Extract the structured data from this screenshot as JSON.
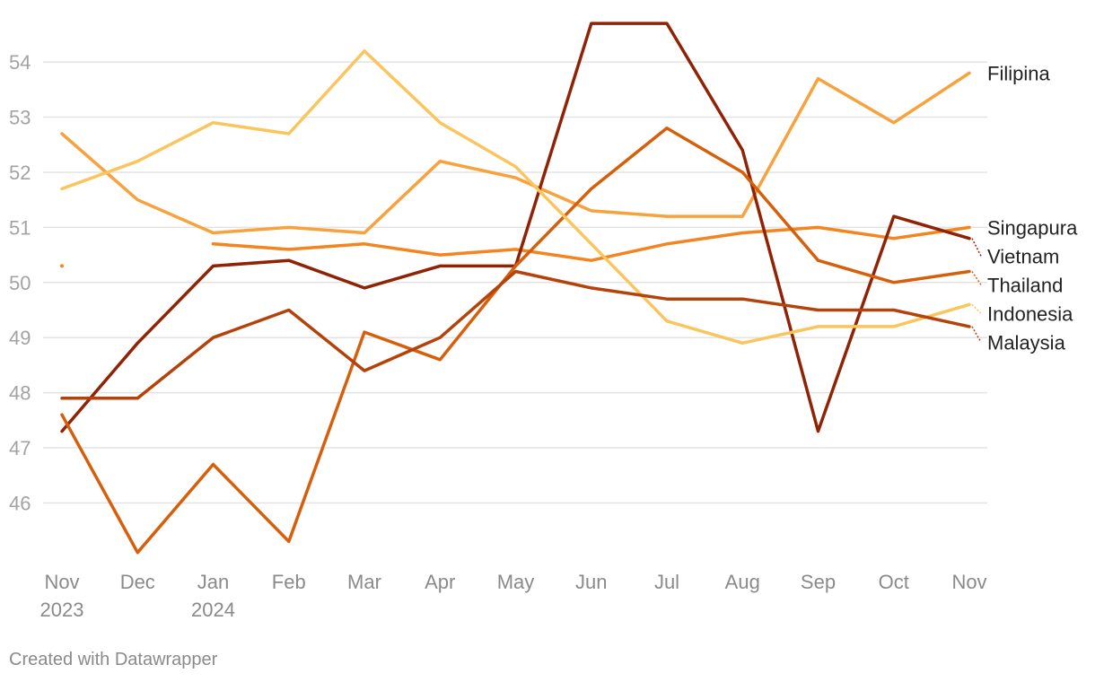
{
  "chart_data": {
    "type": "line",
    "x": [
      "Nov 2023",
      "Dec 2023",
      "Jan 2024",
      "Feb 2024",
      "Mar 2024",
      "Apr 2024",
      "May 2024",
      "Jun 2024",
      "Jul 2024",
      "Aug 2024",
      "Sep 2024",
      "Oct 2024",
      "Nov 2024"
    ],
    "x_tick_labels": [
      {
        "line1": "Nov",
        "line2": "2023"
      },
      {
        "line1": "Dec",
        "line2": ""
      },
      {
        "line1": "Jan",
        "line2": "2024"
      },
      {
        "line1": "Feb",
        "line2": ""
      },
      {
        "line1": "Mar",
        "line2": ""
      },
      {
        "line1": "Apr",
        "line2": ""
      },
      {
        "line1": "May",
        "line2": ""
      },
      {
        "line1": "Jun",
        "line2": ""
      },
      {
        "line1": "Jul",
        "line2": ""
      },
      {
        "line1": "Aug",
        "line2": ""
      },
      {
        "line1": "Sep",
        "line2": ""
      },
      {
        "line1": "Oct",
        "line2": ""
      },
      {
        "line1": "Nov",
        "line2": ""
      }
    ],
    "y_ticks": [
      46,
      47,
      48,
      49,
      50,
      51,
      52,
      53,
      54
    ],
    "ylim": [
      44.9,
      54.8
    ],
    "grid": true,
    "title": "",
    "xlabel": "",
    "ylabel": "",
    "series": [
      {
        "name": "Filipina",
        "color": "#f7a23c",
        "values": [
          52.7,
          51.5,
          50.9,
          51.0,
          50.9,
          52.2,
          51.9,
          51.3,
          51.2,
          51.2,
          53.7,
          52.9,
          53.8
        ]
      },
      {
        "name": "Singapura",
        "color": "#f4841f",
        "values": [
          50.3,
          null,
          50.7,
          50.6,
          50.7,
          50.5,
          50.6,
          50.4,
          50.7,
          50.9,
          51.0,
          50.8,
          51.0
        ]
      },
      {
        "name": "Vietnam",
        "color": "#8f2305",
        "values": [
          47.3,
          48.9,
          50.3,
          50.4,
          49.9,
          50.3,
          50.3,
          54.7,
          54.7,
          52.4,
          47.3,
          51.2,
          50.8
        ]
      },
      {
        "name": "Thailand",
        "color": "#d65f0c",
        "values": [
          47.6,
          45.1,
          46.7,
          45.3,
          49.1,
          48.6,
          50.3,
          51.7,
          52.8,
          52.0,
          50.4,
          50.0,
          50.2
        ]
      },
      {
        "name": "Indonesia",
        "color": "#fbc55e",
        "values": [
          51.7,
          52.2,
          52.9,
          52.7,
          54.2,
          52.9,
          52.1,
          50.7,
          49.3,
          48.9,
          49.2,
          49.2,
          49.6
        ]
      },
      {
        "name": "Malaysia",
        "color": "#b5420a",
        "values": [
          47.9,
          47.9,
          49.0,
          49.5,
          48.4,
          49.0,
          50.2,
          49.9,
          49.7,
          49.7,
          49.5,
          49.5,
          49.2
        ]
      }
    ],
    "legend": "direct labels at line ends (right)"
  },
  "footer": {
    "credit": "Created with Datawrapper"
  }
}
